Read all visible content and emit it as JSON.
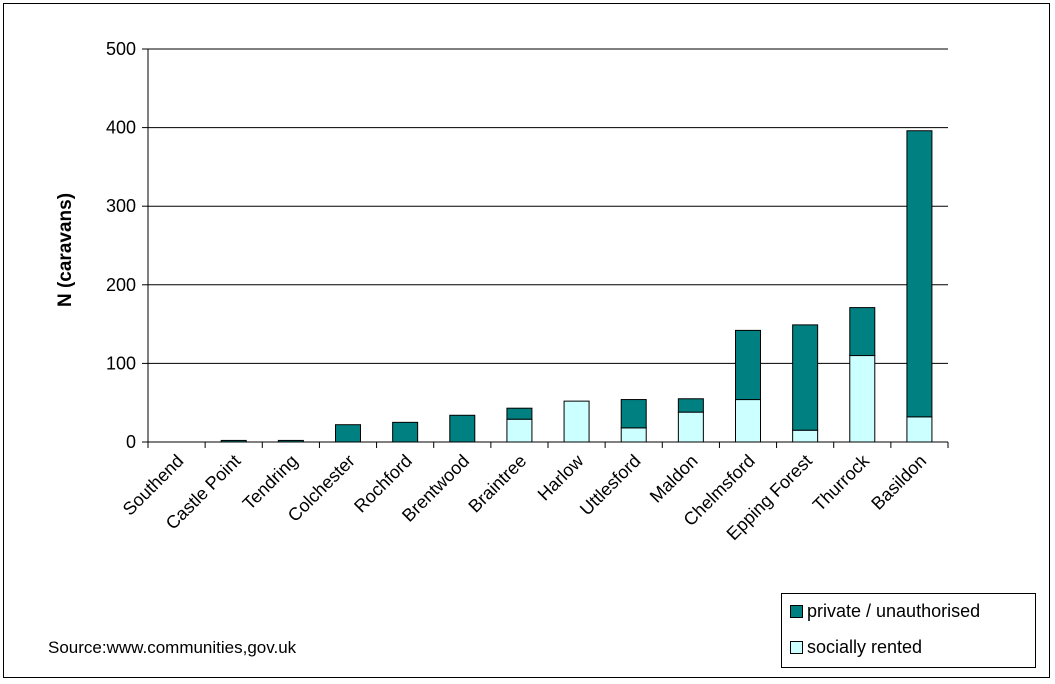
{
  "chart_data": {
    "type": "bar",
    "stacked": true,
    "categories": [
      "Southend",
      "Castle Point",
      "Tendring",
      "Colchester",
      "Rochford",
      "Brentwood",
      "Braintree",
      "Harlow",
      "Uttlesford",
      "Maldon",
      "Chelmsford",
      "Epping Forest",
      "Thurrock",
      "Basildon"
    ],
    "series": [
      {
        "name": "socially rented",
        "color": "#ccffff",
        "values": [
          0,
          0,
          0,
          0,
          0,
          0,
          29,
          52,
          18,
          38,
          54,
          15,
          110,
          32
        ]
      },
      {
        "name": "private / unauthorised",
        "color": "#008080",
        "values": [
          0,
          2,
          2,
          22,
          25,
          34,
          14,
          0,
          36,
          17,
          88,
          134,
          61,
          364
        ]
      }
    ],
    "ylabel": "N (caravans)",
    "ylim": [
      0,
      500
    ],
    "yticks": [
      "0",
      "100",
      "200",
      "300",
      "400",
      "500"
    ],
    "grid": true,
    "legend_position": "bottom-right"
  },
  "footer": {
    "source": "Source:www.communities,gov.uk"
  },
  "legend": {
    "items": [
      {
        "label": "private / unauthorised",
        "color": "#008080"
      },
      {
        "label": "socially rented",
        "color": "#ccffff"
      }
    ]
  }
}
